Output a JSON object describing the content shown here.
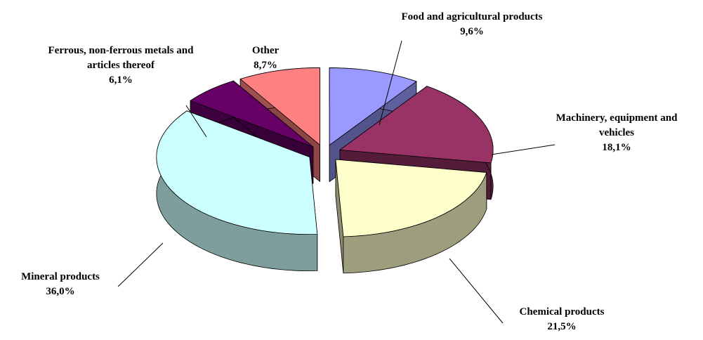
{
  "chart_data": {
    "type": "pie",
    "categories": [
      "Food and agricultural products",
      "Machinery, equipment and vehicles",
      "Chemical products",
      "Mineral products",
      "Ferrous, non-ferrous metals and articles thereof",
      "Other"
    ],
    "values": [
      9.6,
      18.1,
      21.5,
      36.0,
      6.1,
      8.7
    ],
    "value_labels": [
      "9,6%",
      "18,1%",
      "21,5%",
      "36,0%",
      "6,1%",
      "8,7%"
    ],
    "colors": [
      "#9999ff",
      "#993366",
      "#ffffcc",
      "#ccffff",
      "#660066",
      "#ff8080"
    ]
  }
}
